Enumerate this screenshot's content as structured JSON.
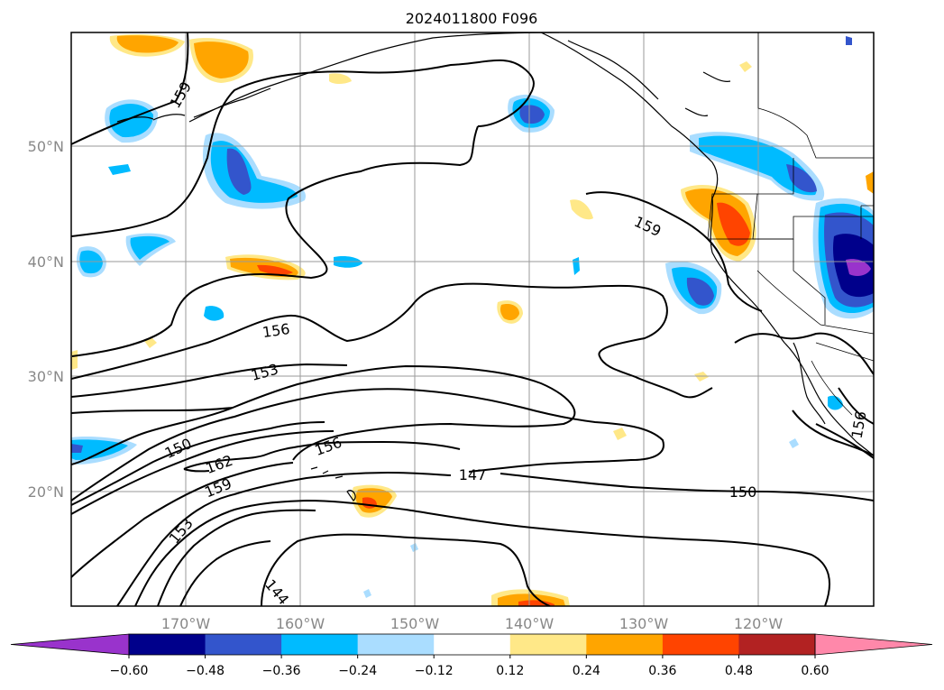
{
  "title": "2024011800 F096",
  "map": {
    "lon_ticks": [
      "170°W",
      "160°W",
      "150°W",
      "140°W",
      "130°W",
      "120°W"
    ],
    "lat_ticks": [
      "50°N",
      "40°N",
      "30°N",
      "20°N"
    ],
    "contour_labels": [
      "159",
      "159",
      "156",
      "153",
      "150",
      "162",
      "159",
      "156",
      "147",
      "153",
      "144",
      "150",
      "156"
    ]
  },
  "colorbar": {
    "ticks": [
      "−0.60",
      "−0.48",
      "−0.36",
      "−0.24",
      "−0.12",
      "0.12",
      "0.24",
      "0.36",
      "0.48",
      "0.60"
    ],
    "colors": [
      "#9933cc",
      "#00008b",
      "#3355cc",
      "#00bbff",
      "#aaddff",
      "#ffffff",
      "#ffe888",
      "#ffa500",
      "#ff4400",
      "#b22222",
      "#ff88aa"
    ]
  }
}
